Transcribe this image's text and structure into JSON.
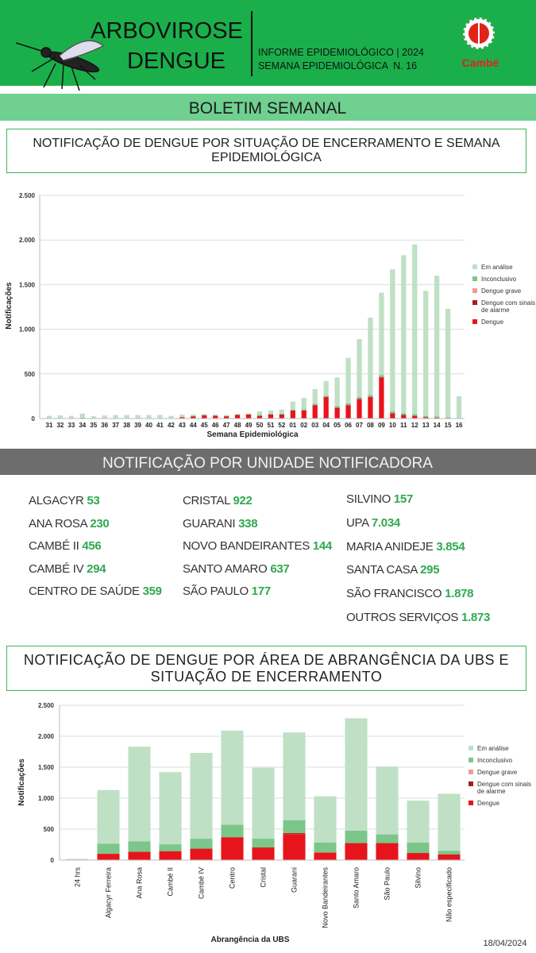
{
  "header": {
    "title1": "ARBOVIROSE",
    "title2": "DENGUE",
    "line1": "INFORME EPIDEMIOLÓGICO | 2024",
    "line2": "SEMANA EPIDEMIOLÓGICA  N. 16",
    "logo": "Cambé"
  },
  "banner": "BOLETIM SEMANAL",
  "units_title": "NOTIFICAÇÃO POR UNIDADE NOTIFICADORA",
  "units": [
    {
      "name": "ALGACYR",
      "value": 53
    },
    {
      "name": "ANA ROSA",
      "value": 230
    },
    {
      "name": "CAMBÉ II",
      "value": 456
    },
    {
      "name": "CAMBÉ IV",
      "value": 294
    },
    {
      "name": "CENTRO DE SAÚDE",
      "value": 359
    },
    {
      "name": "CRISTAL",
      "value": 922
    },
    {
      "name": "GUARANI",
      "value": 338
    },
    {
      "name": "NOVO BANDEIRANTES",
      "value": 144
    },
    {
      "name": "SANTO AMARO",
      "value": 637
    },
    {
      "name": "SÃO PAULO",
      "value": 177
    },
    {
      "name": "SILVINO",
      "value": 157
    },
    {
      "name": "UPA",
      "value": 7034,
      "label": "7.034"
    },
    {
      "name": "MARIA ANIDEJE",
      "value": 3854,
      "label": "3.854"
    },
    {
      "name": "SANTA CASA",
      "value": 295
    },
    {
      "name": "SÃO FRANCISCO",
      "value": 1878,
      "label": "1.878"
    },
    {
      "name": "OUTROS SERVIÇOS",
      "value": 1873,
      "label": "1.873"
    }
  ],
  "date": "18/04/2024",
  "chart_data": [
    {
      "type": "bar",
      "stacked": true,
      "title": "NOTIFICAÇÃO DE DENGUE POR SITUAÇÃO DE ENCERRAMENTO E SEMANA EPIDEMIOLÓGICA",
      "x_label": "Semana Epidemiológica",
      "y_label": "Notificações",
      "categories": [
        "31",
        "32",
        "33",
        "34",
        "35",
        "36",
        "37",
        "38",
        "39",
        "40",
        "41",
        "42",
        "43",
        "44",
        "45",
        "46",
        "47",
        "48",
        "49",
        "50",
        "51",
        "52",
        "01",
        "02",
        "03",
        "04",
        "05",
        "06",
        "07",
        "08",
        "09",
        "10",
        "11",
        "12",
        "13",
        "14",
        "15",
        "16"
      ],
      "series": [
        {
          "name": "Dengue",
          "color": "#e8141c",
          "values": [
            0,
            0,
            0,
            0,
            0,
            0,
            0,
            0,
            0,
            0,
            0,
            0,
            15,
            25,
            35,
            30,
            25,
            40,
            45,
            30,
            45,
            45,
            90,
            90,
            150,
            240,
            120,
            150,
            220,
            240,
            460,
            60,
            40,
            30,
            15,
            10,
            5,
            0
          ]
        },
        {
          "name": "Dengue com sinais de alarme",
          "color": "#a3201e",
          "values": [
            0,
            0,
            0,
            0,
            0,
            0,
            0,
            0,
            0,
            0,
            0,
            0,
            0,
            0,
            0,
            0,
            0,
            0,
            0,
            0,
            0,
            0,
            0,
            0,
            0,
            2,
            0,
            0,
            0,
            3,
            5,
            0,
            0,
            0,
            0,
            0,
            0,
            0
          ]
        },
        {
          "name": "Dengue grave",
          "color": "#f29a9a",
          "values": [
            0,
            0,
            0,
            0,
            0,
            0,
            0,
            0,
            0,
            0,
            0,
            0,
            0,
            0,
            0,
            0,
            0,
            0,
            0,
            0,
            0,
            0,
            0,
            0,
            0,
            0,
            0,
            0,
            0,
            0,
            0,
            0,
            0,
            0,
            0,
            0,
            0,
            0
          ]
        },
        {
          "name": "Inconclusivo",
          "color": "#7cc68a",
          "values": [
            5,
            5,
            5,
            10,
            5,
            5,
            5,
            5,
            5,
            5,
            5,
            5,
            5,
            5,
            5,
            5,
            5,
            5,
            5,
            10,
            10,
            10,
            10,
            15,
            15,
            15,
            20,
            20,
            20,
            20,
            20,
            20,
            20,
            20,
            15,
            15,
            10,
            5
          ]
        },
        {
          "name": "Em análise",
          "color": "#bfe0c4",
          "values": [
            25,
            30,
            25,
            45,
            20,
            30,
            35,
            35,
            35,
            35,
            35,
            25,
            25,
            15,
            10,
            10,
            10,
            5,
            5,
            40,
            35,
            45,
            90,
            125,
            165,
            163,
            320,
            510,
            650,
            867,
            925,
            1590,
            1770,
            1900,
            1400,
            1575,
            1215,
            245
          ]
        }
      ],
      "ylim": [
        0,
        2500
      ],
      "yticks": [
        0,
        500,
        {
          "value": 1000,
          "label": "1.000"
        },
        {
          "value": 1500,
          "label": "1.500"
        },
        {
          "value": 2000,
          "label": "2.000"
        },
        {
          "value": 2500,
          "label": "2.500"
        }
      ],
      "grid": true,
      "legend": "right"
    },
    {
      "type": "bar",
      "stacked": true,
      "title": "NOTIFICAÇÃO DE DENGUE POR ÁREA DE ABRANGÊNCIA DA UBS E SITUAÇÃO DE ENCERRAMENTO",
      "x_label": "Abrangência da UBS",
      "y_label": "Notificações",
      "categories": [
        "24 hrs",
        "Algacyr Ferreira",
        "Ana Rosa",
        "Cambé II",
        "Cambé IV",
        "Centro",
        "Cristal",
        "Guarani",
        "Novo Bandeirantes",
        "Santo Amaro",
        "São Paulo",
        "Silvino",
        "Não especificado"
      ],
      "series": [
        {
          "name": "Dengue",
          "color": "#e8141c",
          "values": [
            0,
            100,
            130,
            140,
            180,
            360,
            200,
            420,
            120,
            270,
            270,
            110,
            90
          ]
        },
        {
          "name": "Dengue com sinais de alarme",
          "color": "#a3201e",
          "values": [
            0,
            5,
            5,
            5,
            5,
            10,
            5,
            15,
            5,
            5,
            5,
            5,
            0
          ]
        },
        {
          "name": "Dengue grave",
          "color": "#f29a9a",
          "values": [
            0,
            0,
            0,
            0,
            0,
            0,
            0,
            0,
            0,
            0,
            0,
            0,
            0
          ]
        },
        {
          "name": "Inconclusivo",
          "color": "#7cc68a",
          "values": [
            0,
            160,
            170,
            110,
            160,
            200,
            140,
            210,
            160,
            200,
            140,
            170,
            60
          ]
        },
        {
          "name": "Em análise",
          "color": "#bfe0c4",
          "values": [
            20,
            865,
            1525,
            1165,
            1385,
            1520,
            1145,
            1415,
            745,
            1815,
            1095,
            675,
            920
          ]
        }
      ],
      "ylim": [
        0,
        2500
      ],
      "yticks": [
        0,
        500,
        {
          "value": 1000,
          "label": "1.000"
        },
        {
          "value": 1500,
          "label": "1.500"
        },
        {
          "value": 2000,
          "label": "2.000"
        },
        {
          "value": 2500,
          "label": "2.500"
        }
      ],
      "grid": true,
      "legend": "right"
    }
  ]
}
